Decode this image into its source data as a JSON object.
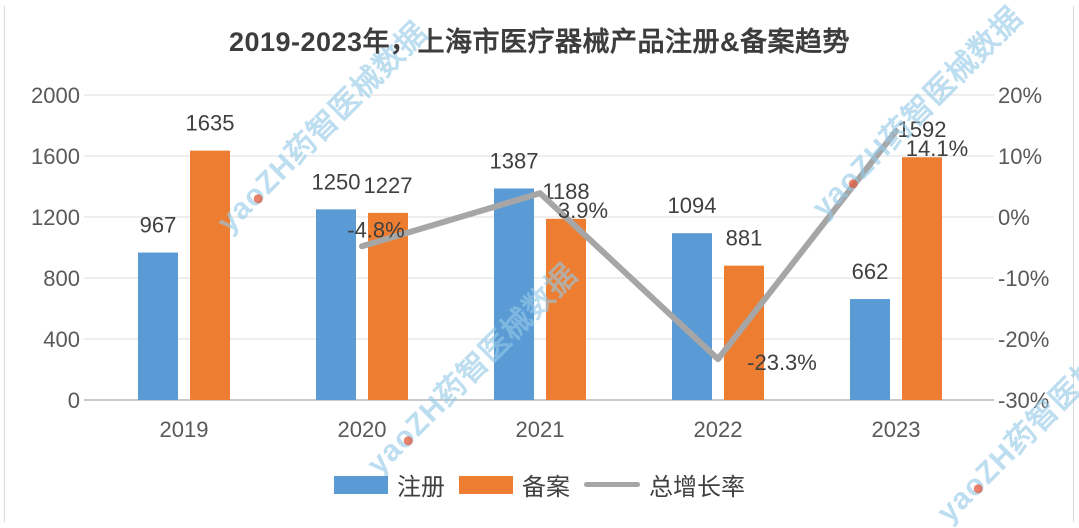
{
  "chart": {
    "title": "2019-2023年，上海市医疗器械产品注册&备案趋势"
  },
  "chart_data": {
    "type": "bar",
    "subtype": "grouped bars with overlay line (secondary percent axis)",
    "title": "2019-2023年，上海市医疗器械产品注册&备案趋势",
    "categories": [
      "2019",
      "2020",
      "2021",
      "2022",
      "2023"
    ],
    "series": [
      {
        "name": "注册",
        "type": "bar",
        "axis": "left",
        "color": "#5B9BD5",
        "values": [
          967,
          1250,
          1387,
          1094,
          662
        ],
        "labels": [
          "967",
          "1250",
          "1387",
          "1094",
          "662"
        ]
      },
      {
        "name": "备案",
        "type": "bar",
        "axis": "left",
        "color": "#ED7D31",
        "values": [
          1635,
          1227,
          1188,
          881,
          1592
        ],
        "labels": [
          "1635",
          "1227",
          "1188",
          "881",
          "1592"
        ]
      },
      {
        "name": "总增长率",
        "type": "line",
        "axis": "right",
        "color": "#A6A6A6",
        "values": [
          null,
          -4.8,
          3.9,
          -23.3,
          14.1
        ],
        "labels": [
          null,
          "-4.8%",
          "3.9%",
          "-23.3%",
          "14.1%"
        ]
      }
    ],
    "left_axis": {
      "min": 0,
      "max": 2000,
      "step": 400,
      "ticks": [
        "0",
        "400",
        "800",
        "1200",
        "1600",
        "2000"
      ]
    },
    "right_axis": {
      "min": -30,
      "max": 20,
      "step": 10,
      "ticks": [
        "-30%",
        "-20%",
        "-10%",
        "0%",
        "10%",
        "20%"
      ],
      "unit": "%"
    },
    "grid": true,
    "legend_position": "bottom"
  },
  "legend": {
    "items": [
      {
        "label": "注册",
        "color": "#5B9BD5",
        "shape": "bar"
      },
      {
        "label": "备案",
        "color": "#ED7D31",
        "shape": "bar"
      },
      {
        "label": "总增长率",
        "color": "#A6A6A6",
        "shape": "line"
      }
    ]
  },
  "watermark": {
    "prefix": "ya",
    "dot_char": "o",
    "suffix": "ZH药智医械数据",
    "text": "yaoZH药智医械数据",
    "color": "#94cae6"
  }
}
